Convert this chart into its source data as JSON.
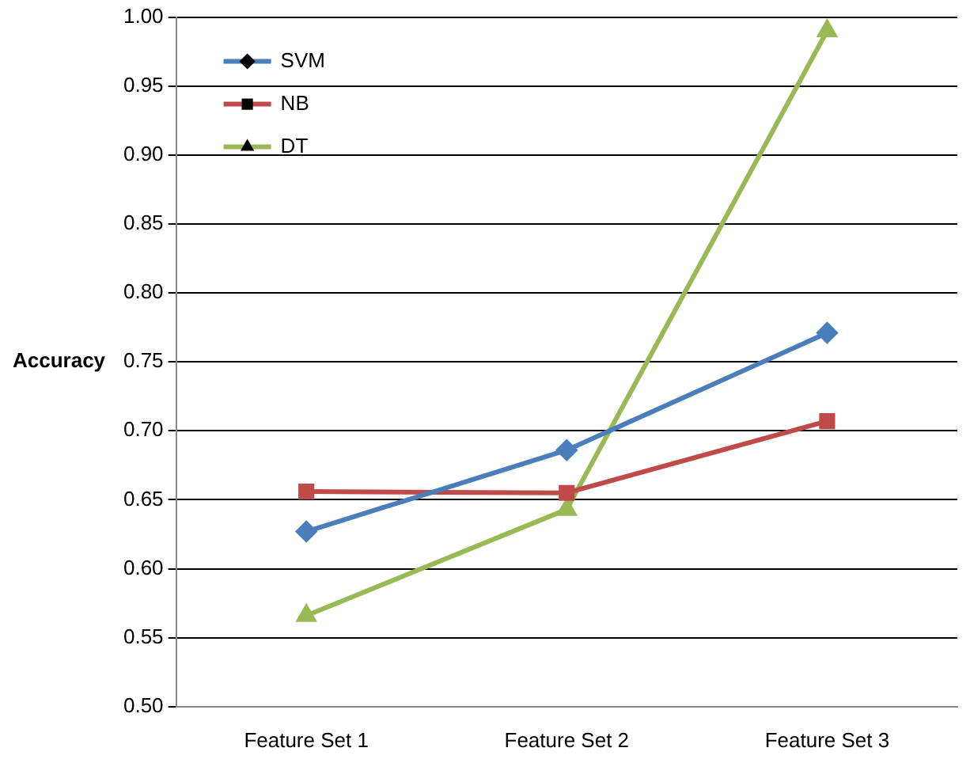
{
  "chart_data": {
    "type": "line",
    "ylabel": "Accuracy",
    "categories": [
      "Feature Set 1",
      "Feature Set 2",
      "Feature Set 3"
    ],
    "series": [
      {
        "name": "SVM",
        "color": "#4a7ebb",
        "marker": "diamond",
        "values": [
          0.627,
          0.686,
          0.771
        ]
      },
      {
        "name": "NB",
        "color": "#be4b48",
        "marker": "square",
        "values": [
          0.656,
          0.655,
          0.707
        ]
      },
      {
        "name": "DT",
        "color": "#98b954",
        "marker": "triangle",
        "values": [
          0.566,
          0.643,
          0.99
        ]
      }
    ],
    "ylim": [
      0.5,
      1.0
    ],
    "yticks": [
      {
        "value": 0.5,
        "label": "0.50"
      },
      {
        "value": 0.55,
        "label": "0.55"
      },
      {
        "value": 0.6,
        "label": "0.60"
      },
      {
        "value": 0.65,
        "label": "0.65"
      },
      {
        "value": 0.7,
        "label": "0.70"
      },
      {
        "value": 0.75,
        "label": "0.75"
      },
      {
        "value": 0.8,
        "label": "0.80"
      },
      {
        "value": 0.85,
        "label": "0.85"
      },
      {
        "value": 0.9,
        "label": "0.90"
      },
      {
        "value": 0.95,
        "label": "0.95"
      },
      {
        "value": 1.0,
        "label": "1.00"
      }
    ],
    "grid": "y",
    "legend": "top left"
  }
}
